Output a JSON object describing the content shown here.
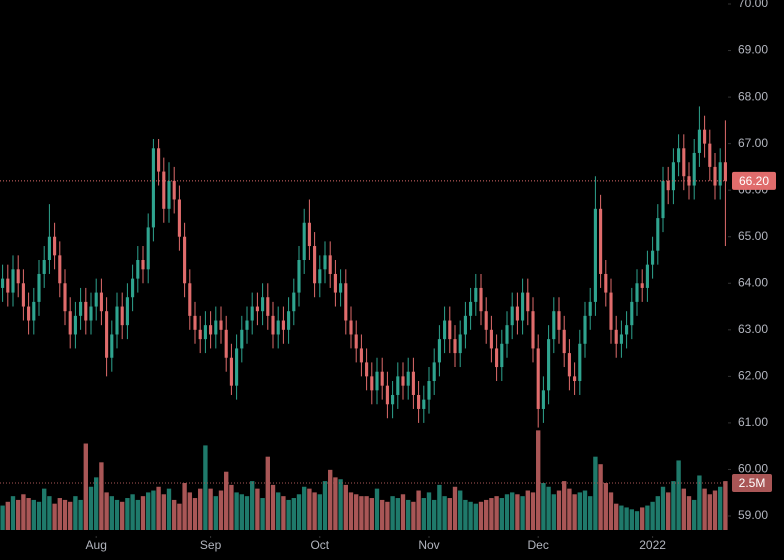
{
  "chart_data": {
    "type": "candlestick",
    "up_color": "#2fa48f",
    "down_color": "#e06c6c",
    "volume_up_color": "#1f7a6b",
    "volume_down_color": "#a95656",
    "grid": false,
    "xlim": [
      -0.5,
      139.5
    ],
    "xticks": [
      {
        "value": 18,
        "label": "Aug"
      },
      {
        "value": 40,
        "label": "Sep"
      },
      {
        "value": 61,
        "label": "Oct"
      },
      {
        "value": 82,
        "label": "Nov"
      },
      {
        "value": 103,
        "label": "Dec"
      },
      {
        "value": 125,
        "label": "2022"
      }
    ],
    "ylim": [
      59,
      70
    ],
    "yticks": [
      {
        "value": 59,
        "label": "59.00"
      },
      {
        "value": 60,
        "label": "60.00"
      },
      {
        "value": 61,
        "label": "61.00"
      },
      {
        "value": 62,
        "label": "62.00"
      },
      {
        "value": 63,
        "label": "63.00"
      },
      {
        "value": 64,
        "label": "64.00"
      },
      {
        "value": 65,
        "label": "65.00"
      },
      {
        "value": 66,
        "label": "66.00"
      },
      {
        "value": 67,
        "label": "67.00"
      },
      {
        "value": 68,
        "label": "68.00"
      },
      {
        "value": 69,
        "label": "69.00"
      },
      {
        "value": 70,
        "label": "70.00"
      }
    ],
    "volume_ylim": [
      0,
      15
    ],
    "last_price": {
      "value": 66.2,
      "label": "66.20"
    },
    "volume_marker": {
      "value": 2.5,
      "label": "2.5M"
    },
    "open": [
      63.9,
      64.1,
      63.8,
      64.3,
      64.0,
      63.5,
      63.2,
      63.6,
      64.2,
      64.5,
      65.0,
      64.6,
      64.0,
      63.4,
      62.9,
      63.3,
      63.6,
      63.2,
      63.5,
      63.8,
      63.4,
      62.4,
      62.9,
      63.5,
      63.1,
      63.7,
      64.1,
      64.5,
      64.3,
      65.2,
      66.9,
      66.4,
      65.6,
      66.2,
      65.8,
      65.0,
      64.0,
      63.3,
      63.0,
      62.8,
      63.1,
      62.9,
      63.2,
      63.0,
      62.4,
      61.8,
      62.6,
      63.0,
      63.2,
      63.5,
      63.4,
      63.7,
      63.3,
      62.9,
      63.2,
      63.0,
      63.4,
      63.8,
      64.5,
      65.3,
      64.8,
      64.0,
      64.3,
      64.6,
      64.2,
      63.8,
      64.0,
      63.2,
      62.9,
      62.6,
      62.3,
      62.0,
      61.7,
      62.1,
      61.8,
      61.4,
      61.6,
      62.0,
      61.8,
      62.1,
      61.6,
      61.3,
      61.5,
      61.9,
      62.3,
      62.8,
      63.2,
      62.8,
      62.5,
      62.9,
      63.3,
      63.6,
      63.9,
      63.4,
      63.0,
      62.6,
      62.2,
      62.7,
      63.1,
      63.5,
      63.2,
      63.8,
      63.4,
      62.6,
      61.3,
      61.7,
      62.8,
      63.4,
      63.0,
      62.5,
      62.0,
      61.9,
      62.7,
      63.3,
      63.6,
      65.6,
      64.2,
      63.8,
      63.0,
      62.7,
      62.9,
      63.1,
      63.6,
      64.0,
      63.9,
      64.4,
      64.7,
      65.4,
      66.2,
      66.0,
      66.6,
      66.9,
      66.3,
      66.1,
      66.8,
      67.3,
      67.0,
      66.5,
      66.1,
      66.6
    ],
    "high": [
      64.4,
      64.4,
      64.6,
      64.6,
      64.3,
      63.8,
      63.9,
      64.5,
      64.8,
      65.7,
      65.3,
      64.9,
      64.3,
      63.7,
      63.6,
      63.9,
      63.9,
      63.8,
      64.1,
      64.1,
      63.7,
      63.2,
      63.8,
      63.8,
      64.0,
      64.4,
      64.8,
      64.8,
      65.5,
      67.1,
      67.1,
      66.7,
      66.6,
      66.5,
      66.1,
      65.3,
      64.3,
      63.6,
      63.3,
      63.4,
      63.4,
      63.5,
      63.5,
      63.3,
      62.7,
      62.9,
      63.3,
      63.5,
      63.8,
      63.8,
      64.0,
      64.0,
      63.6,
      63.5,
      63.5,
      63.7,
      64.1,
      64.8,
      65.6,
      65.8,
      65.1,
      64.6,
      64.9,
      64.9,
      64.5,
      64.3,
      64.3,
      63.5,
      63.2,
      62.9,
      62.6,
      62.3,
      62.4,
      62.4,
      62.1,
      61.9,
      62.3,
      62.3,
      62.4,
      62.4,
      61.9,
      61.8,
      62.2,
      62.6,
      63.1,
      63.5,
      63.5,
      63.1,
      63.2,
      63.6,
      63.9,
      64.2,
      64.2,
      63.7,
      63.3,
      62.9,
      63.0,
      63.4,
      63.8,
      63.8,
      64.1,
      64.1,
      63.7,
      62.9,
      62.0,
      63.1,
      63.7,
      63.7,
      63.3,
      62.8,
      62.3,
      63.0,
      63.6,
      63.9,
      66.3,
      65.9,
      64.5,
      64.1,
      63.3,
      63.2,
      63.4,
      63.9,
      64.3,
      64.3,
      64.7,
      65.0,
      65.7,
      66.5,
      66.5,
      66.9,
      67.2,
      67.2,
      66.6,
      67.1,
      67.8,
      67.6,
      67.3,
      66.8,
      66.9,
      67.5
    ],
    "low": [
      63.6,
      63.5,
      63.5,
      63.7,
      63.2,
      62.9,
      62.9,
      63.3,
      63.9,
      64.2,
      64.3,
      63.7,
      63.1,
      62.6,
      62.6,
      63.0,
      62.9,
      62.9,
      63.2,
      63.1,
      62.0,
      62.1,
      62.6,
      62.8,
      62.8,
      63.4,
      63.8,
      64.0,
      64.0,
      64.9,
      66.1,
      65.3,
      65.3,
      65.5,
      64.7,
      63.7,
      63.0,
      62.7,
      62.5,
      62.5,
      62.6,
      62.6,
      62.7,
      62.1,
      61.6,
      61.5,
      62.3,
      62.7,
      62.9,
      63.1,
      63.1,
      63.0,
      62.6,
      62.6,
      62.7,
      62.7,
      63.1,
      63.5,
      64.2,
      64.5,
      63.7,
      63.7,
      64.0,
      63.9,
      63.5,
      63.5,
      62.9,
      62.6,
      62.3,
      62.0,
      61.7,
      61.4,
      61.4,
      61.5,
      61.1,
      61.1,
      61.3,
      61.5,
      61.5,
      61.3,
      61.0,
      61.0,
      61.2,
      61.6,
      62.0,
      62.5,
      62.5,
      62.2,
      62.2,
      62.6,
      63.0,
      63.3,
      63.1,
      62.7,
      62.3,
      61.9,
      61.9,
      62.4,
      62.8,
      62.9,
      62.9,
      63.1,
      62.3,
      60.9,
      61.0,
      61.4,
      62.5,
      62.7,
      62.2,
      61.7,
      61.6,
      61.6,
      62.4,
      63.0,
      63.3,
      63.9,
      63.5,
      62.7,
      62.4,
      62.4,
      62.6,
      62.8,
      63.3,
      63.6,
      63.6,
      64.1,
      64.4,
      65.1,
      65.7,
      65.7,
      66.3,
      66.0,
      65.8,
      65.8,
      66.5,
      66.7,
      66.2,
      65.8,
      65.8,
      64.8
    ],
    "close": [
      64.1,
      63.8,
      64.3,
      64.0,
      63.5,
      63.2,
      63.6,
      64.2,
      64.5,
      65.0,
      64.6,
      64.0,
      63.4,
      62.9,
      63.3,
      63.6,
      63.2,
      63.5,
      63.8,
      63.4,
      62.4,
      62.9,
      63.5,
      63.1,
      63.7,
      64.1,
      64.5,
      64.3,
      65.2,
      66.9,
      66.4,
      65.6,
      66.2,
      65.8,
      65.0,
      64.0,
      63.3,
      63.0,
      62.8,
      63.1,
      62.9,
      63.2,
      63.0,
      62.4,
      61.8,
      62.6,
      63.0,
      63.2,
      63.5,
      63.4,
      63.7,
      63.3,
      62.9,
      63.2,
      63.0,
      63.4,
      63.8,
      64.5,
      65.3,
      64.8,
      64.0,
      64.3,
      64.6,
      64.2,
      63.8,
      64.0,
      63.2,
      62.9,
      62.6,
      62.3,
      62.0,
      61.7,
      62.1,
      61.8,
      61.4,
      61.6,
      62.0,
      61.8,
      62.1,
      61.6,
      61.3,
      61.5,
      61.9,
      62.3,
      62.8,
      63.2,
      62.8,
      62.5,
      62.9,
      63.3,
      63.6,
      63.9,
      63.4,
      63.0,
      62.6,
      62.2,
      62.7,
      63.1,
      63.5,
      63.2,
      63.8,
      63.4,
      62.6,
      61.3,
      61.7,
      62.8,
      63.4,
      63.0,
      62.5,
      62.0,
      61.9,
      62.7,
      63.3,
      63.6,
      65.6,
      64.2,
      63.8,
      63.0,
      62.7,
      62.9,
      63.1,
      63.6,
      64.0,
      63.9,
      64.4,
      64.7,
      65.4,
      66.2,
      66.0,
      66.6,
      66.9,
      66.3,
      66.1,
      66.8,
      67.3,
      67.0,
      66.5,
      66.1,
      66.6,
      66.2
    ],
    "volume": [
      1.3,
      1.5,
      1.8,
      1.6,
      1.9,
      1.7,
      1.6,
      1.5,
      2.2,
      1.8,
      1.4,
      1.7,
      1.6,
      1.5,
      1.8,
      1.6,
      4.6,
      2.3,
      2.8,
      3.6,
      2.0,
      1.8,
      1.6,
      1.5,
      1.7,
      1.9,
      1.6,
      1.8,
      2.0,
      2.1,
      2.3,
      1.9,
      2.2,
      1.6,
      1.4,
      2.5,
      2.0,
      1.7,
      2.2,
      4.5,
      2.2,
      1.8,
      2.1,
      3.1,
      2.4,
      2.0,
      1.9,
      1.8,
      2.6,
      2.2,
      1.7,
      3.9,
      2.4,
      2.0,
      1.8,
      1.6,
      1.7,
      1.9,
      2.3,
      2.2,
      2.0,
      1.9,
      2.6,
      3.2,
      2.8,
      2.7,
      2.4,
      2.0,
      1.9,
      1.8,
      1.8,
      1.7,
      2.2,
      1.6,
      1.5,
      1.8,
      1.7,
      1.9,
      1.6,
      1.5,
      2.1,
      1.7,
      2.0,
      1.6,
      2.4,
      1.8,
      1.7,
      2.3,
      2.1,
      1.6,
      1.5,
      1.4,
      1.5,
      1.6,
      1.7,
      1.8,
      1.7,
      1.9,
      2.0,
      1.9,
      1.8,
      2.1,
      2.0,
      5.3,
      2.5,
      2.3,
      1.9,
      2.1,
      2.6,
      2.2,
      1.9,
      2.0,
      2.1,
      1.8,
      3.9,
      3.5,
      2.5,
      2.0,
      1.4,
      1.3,
      1.2,
      1.1,
      1.0,
      1.2,
      1.3,
      1.5,
      1.8,
      2.3,
      2.0,
      2.6,
      3.7,
      2.2,
      1.8,
      1.6,
      2.9,
      2.2,
      1.9,
      2.1,
      2.3,
      2.6
    ]
  }
}
